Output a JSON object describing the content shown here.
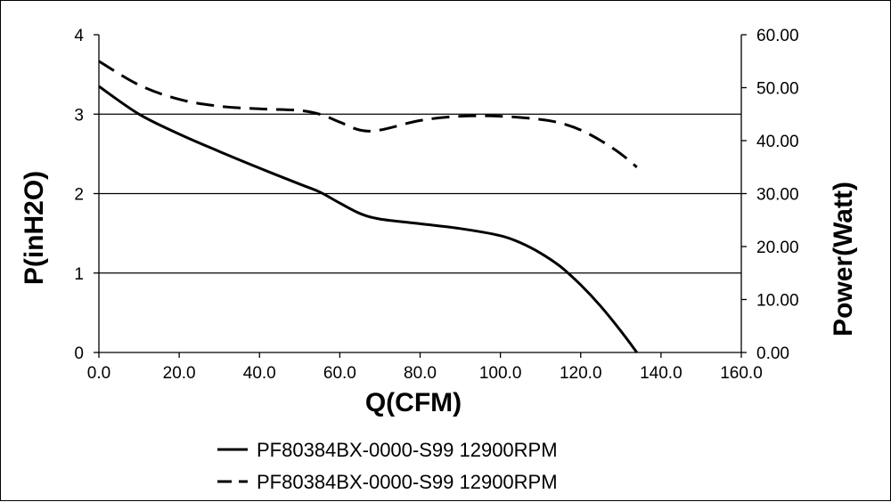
{
  "chart_data": {
    "type": "line",
    "title": "",
    "xlabel": "Q(CFM)",
    "ylabel": "P(inH2O)",
    "y2label": "Power(Watt)",
    "xlim": [
      0,
      160
    ],
    "ylim": [
      0,
      4
    ],
    "y2lim": [
      0,
      60
    ],
    "x_ticks": [
      "0.0",
      "20.0",
      "40.0",
      "60.0",
      "80.0",
      "100.0",
      "120.0",
      "140.0",
      "160.0"
    ],
    "y_ticks": [
      "0",
      "1",
      "2",
      "3",
      "4"
    ],
    "y2_ticks": [
      "0.00",
      "10.00",
      "20.00",
      "30.00",
      "40.00",
      "50.00",
      "60.00"
    ],
    "grid": "horizontal",
    "legend_position": "bottom",
    "series": [
      {
        "name": "PF80384BX-0000-S99 12900RPM",
        "axis": "left",
        "style": "solid",
        "color": "#000000",
        "x": [
          0,
          10,
          20,
          30,
          40,
          50,
          55,
          60,
          65,
          70,
          80,
          90,
          100,
          105,
          110,
          115,
          120,
          125,
          130,
          134
        ],
        "y": [
          3.35,
          3.0,
          2.75,
          2.53,
          2.32,
          2.12,
          2.02,
          1.88,
          1.75,
          1.68,
          1.62,
          1.56,
          1.47,
          1.38,
          1.25,
          1.08,
          0.85,
          0.58,
          0.27,
          0.0
        ]
      },
      {
        "name": "PF80384BX-0000-S99 12900RPM",
        "axis": "right",
        "style": "dashed",
        "color": "#000000",
        "x": [
          0,
          10,
          20,
          30,
          40,
          50,
          55,
          60,
          65,
          70,
          80,
          90,
          100,
          110,
          115,
          120,
          125,
          130,
          134
        ],
        "y": [
          55.0,
          50.5,
          47.8,
          46.5,
          46.0,
          45.7,
          45.0,
          43.5,
          42.0,
          42.0,
          43.8,
          44.6,
          44.6,
          44.0,
          43.3,
          42.0,
          40.0,
          37.5,
          35.0
        ]
      }
    ]
  }
}
